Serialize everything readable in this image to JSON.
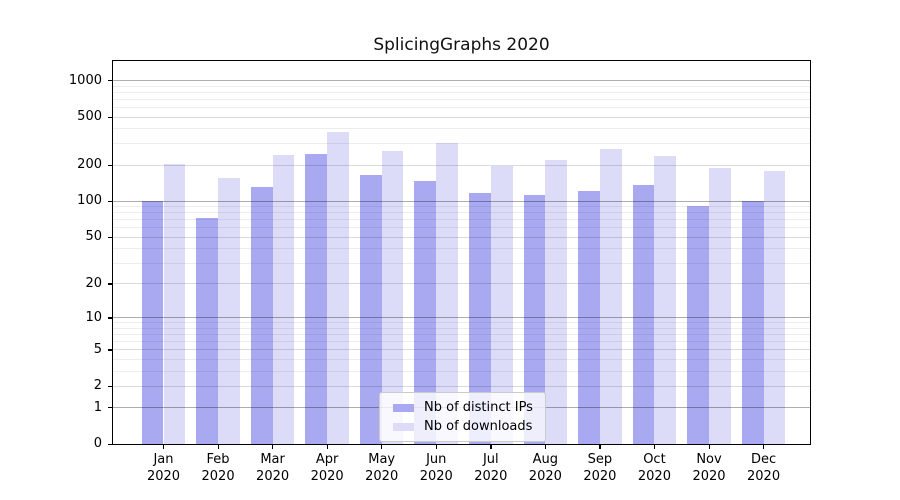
{
  "chart_data": {
    "type": "bar",
    "title": "SplicingGraphs 2020",
    "scale": "log1p",
    "categories": [
      "Jan",
      "Feb",
      "Mar",
      "Apr",
      "May",
      "Jun",
      "Jul",
      "Aug",
      "Sep",
      "Oct",
      "Nov",
      "Dec"
    ],
    "category_year": "2020",
    "series": [
      {
        "name": "Nb of distinct IPs",
        "color": "#a9a9f2",
        "values": [
          100,
          72,
          132,
          248,
          166,
          148,
          117,
          113,
          122,
          136,
          92,
          101
        ]
      },
      {
        "name": "Nb of downloads",
        "color": "#dcdcf8",
        "values": [
          203,
          157,
          242,
          375,
          263,
          306,
          197,
          221,
          270,
          237,
          188,
          177
        ]
      }
    ],
    "yticks": [
      0,
      1,
      2,
      5,
      10,
      20,
      50,
      100,
      200,
      500,
      1000
    ],
    "minor_yticks": [
      3,
      4,
      6,
      7,
      8,
      9,
      30,
      40,
      60,
      70,
      80,
      90,
      300,
      400,
      600,
      700,
      800,
      900
    ],
    "ylim": [
      0,
      1450
    ],
    "grid": true,
    "legend_position": "lower center"
  },
  "colors": {
    "background": "#ffffff",
    "spine": "#000000",
    "grid_major": "rgba(0,0,0,0.32)",
    "grid_mid": "rgba(0,0,0,0.14)",
    "grid_minor": "rgba(0,0,0,0.07)",
    "text": "#000000"
  }
}
